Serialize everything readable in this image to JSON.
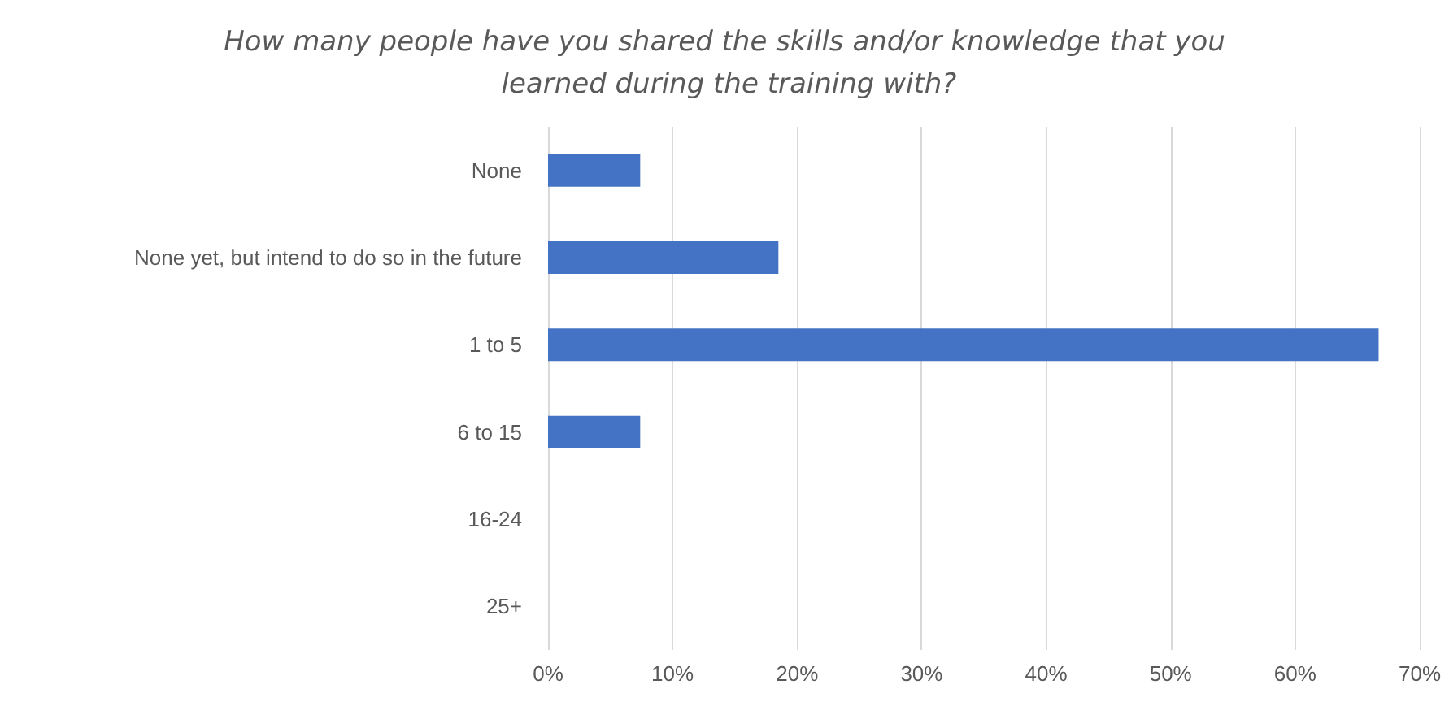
{
  "chart_data": {
    "type": "bar",
    "orientation": "horizontal",
    "title": "How many people have you shared the skills and/or knowledge that you learned during the training with?",
    "categories": [
      "None",
      "None yet, but intend to do so in the future",
      "1 to 5",
      "6 to 15",
      "16-24",
      "25+"
    ],
    "values": [
      7.4,
      18.5,
      66.7,
      7.4,
      0,
      0
    ],
    "color": "#4472c4",
    "xlim": [
      0,
      70
    ],
    "xticks": [
      {
        "value": 0,
        "label": "0%"
      },
      {
        "value": 10,
        "label": "10%"
      },
      {
        "value": 20,
        "label": "20%"
      },
      {
        "value": 30,
        "label": "30%"
      },
      {
        "value": 40,
        "label": "40%"
      },
      {
        "value": 50,
        "label": "50%"
      },
      {
        "value": 60,
        "label": "60%"
      },
      {
        "value": 70,
        "label": "70%"
      }
    ],
    "grid": "x"
  }
}
